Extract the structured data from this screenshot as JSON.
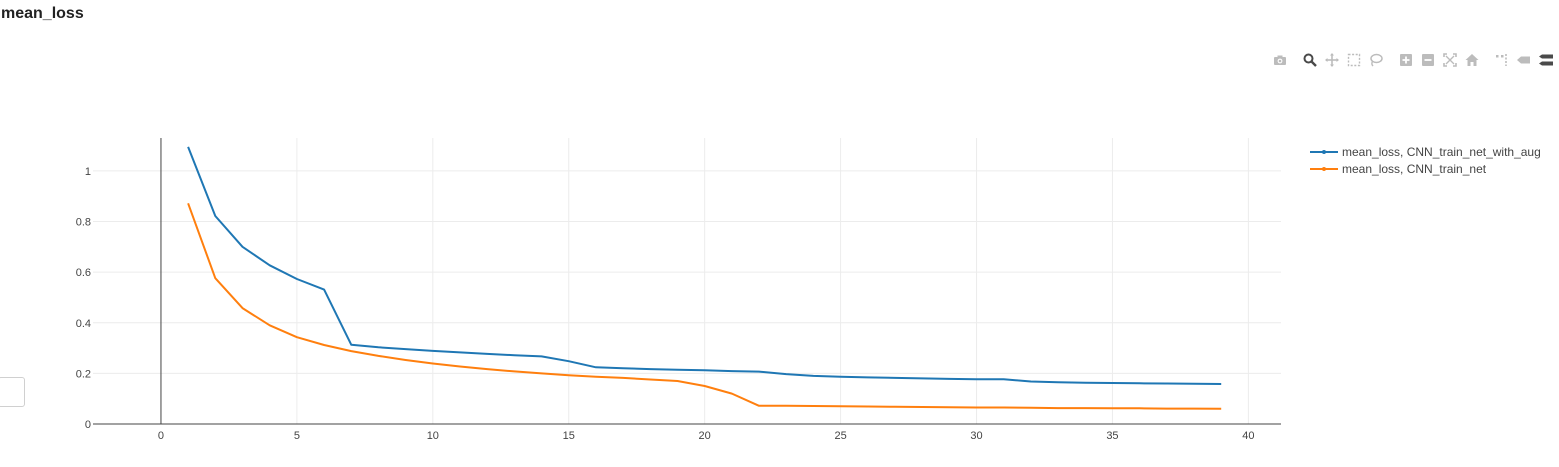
{
  "title": "mean_loss",
  "toolbar": {
    "icons": [
      "camera-icon",
      "zoom-icon",
      "pan-icon",
      "box-select-icon",
      "lasso-icon",
      "zoom-in-icon",
      "zoom-out-icon",
      "autoscale-icon",
      "home-icon",
      "spike-lines-icon",
      "hover-closest-icon",
      "hover-compare-icon"
    ]
  },
  "chart_data": {
    "type": "line",
    "title": "mean_loss",
    "xlabel": "",
    "ylabel": "",
    "xlim": [
      -2.5,
      41.2
    ],
    "ylim": [
      0,
      1.13
    ],
    "x_ticks": [
      "0",
      "5",
      "10",
      "15",
      "20",
      "25",
      "30",
      "35",
      "40"
    ],
    "y_ticks": [
      "0",
      "0.2",
      "0.4",
      "0.6",
      "0.8",
      "1"
    ],
    "grid": true,
    "legend_position": "top-right",
    "x": [
      1,
      2,
      3,
      4,
      5,
      6,
      7,
      8,
      9,
      10,
      11,
      12,
      13,
      14,
      15,
      16,
      17,
      18,
      19,
      20,
      21,
      22,
      23,
      24,
      25,
      26,
      27,
      28,
      29,
      30,
      31,
      32,
      33,
      34,
      35,
      36,
      37,
      38,
      39
    ],
    "series": [
      {
        "name": "mean_loss, CNN_train_net_with_aug",
        "color": "#1f77b4",
        "values": [
          1.095,
          0.822,
          0.7,
          0.627,
          0.573,
          0.531,
          0.313,
          0.303,
          0.296,
          0.289,
          0.283,
          0.277,
          0.272,
          0.267,
          0.248,
          0.224,
          0.22,
          0.217,
          0.214,
          0.212,
          0.209,
          0.207,
          0.197,
          0.19,
          0.187,
          0.184,
          0.182,
          0.18,
          0.178,
          0.177,
          0.177,
          0.168,
          0.165,
          0.163,
          0.162,
          0.161,
          0.16,
          0.159,
          0.158
        ]
      },
      {
        "name": "mean_loss, CNN_train_net",
        "color": "#ff7f0e",
        "values": [
          0.872,
          0.576,
          0.458,
          0.39,
          0.343,
          0.312,
          0.288,
          0.269,
          0.253,
          0.239,
          0.227,
          0.217,
          0.208,
          0.2,
          0.193,
          0.187,
          0.182,
          0.176,
          0.17,
          0.15,
          0.12,
          0.072,
          0.072,
          0.071,
          0.07,
          0.069,
          0.068,
          0.067,
          0.066,
          0.065,
          0.065,
          0.064,
          0.063,
          0.063,
          0.062,
          0.062,
          0.061,
          0.061,
          0.06
        ]
      }
    ]
  }
}
